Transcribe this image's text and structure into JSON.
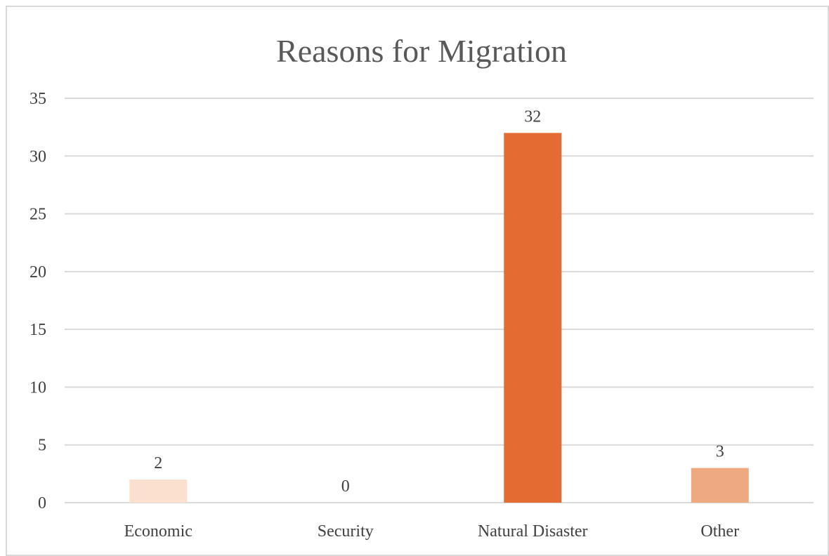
{
  "chart_data": {
    "type": "bar",
    "title": "Reasons for Migration",
    "xlabel": "",
    "ylabel": "",
    "categories": [
      "Economic",
      "Security",
      "Natural Disaster",
      "Other"
    ],
    "values": [
      2,
      0,
      32,
      3
    ],
    "data_labels": [
      "2",
      "0",
      "32",
      "3"
    ],
    "bar_colors": [
      "#fbe0d0",
      "#f6c3a4",
      "#e46c33",
      "#eea981"
    ],
    "ylim": [
      0,
      35
    ],
    "y_ticks": [
      0,
      5,
      10,
      15,
      20,
      25,
      30,
      35
    ],
    "y_tick_labels": [
      "0",
      "5",
      "10",
      "15",
      "20",
      "25",
      "30",
      "35"
    ],
    "grid": true,
    "legend": "none"
  }
}
